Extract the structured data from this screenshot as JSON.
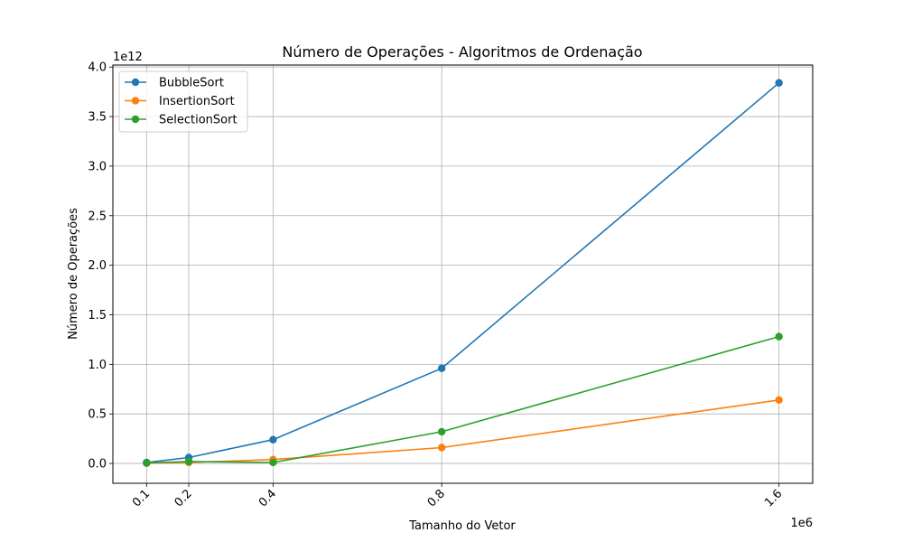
{
  "chart_data": {
    "type": "line",
    "title": "Número de Operações - Algoritmos de Ordenação",
    "xlabel": "Tamanho do Vetor",
    "ylabel": "Número de Operações",
    "x_offset_label": "1e6",
    "y_offset_label": "1e12",
    "x": [
      100000,
      200000,
      400000,
      800000,
      1600000
    ],
    "x_tick_labels": [
      "0.1",
      "0.2",
      "0.4",
      "0.8",
      "1.6"
    ],
    "y_ticks": [
      0,
      0.5,
      1.0,
      1.5,
      2.0,
      2.5,
      3.0,
      3.5,
      4.0
    ],
    "y_tick_labels": [
      "0.0",
      "0.5",
      "1.0",
      "1.5",
      "2.0",
      "2.5",
      "3.0",
      "3.5",
      "4.0"
    ],
    "xlim": [
      20000,
      1680000
    ],
    "ylim": [
      -0.2,
      4.02
    ],
    "grid": true,
    "legend_position": "top-left",
    "series": [
      {
        "name": "BubbleSort",
        "color": "#1f77b4",
        "values": [
          0.01,
          0.06,
          0.24,
          0.96,
          3.84
        ]
      },
      {
        "name": "InsertionSort",
        "color": "#ff7f0e",
        "values": [
          0.0025,
          0.01,
          0.04,
          0.16,
          0.64
        ]
      },
      {
        "name": "SelectionSort",
        "color": "#2ca02c",
        "values": [
          0.005,
          0.02,
          0.01,
          0.32,
          1.28
        ]
      }
    ]
  }
}
